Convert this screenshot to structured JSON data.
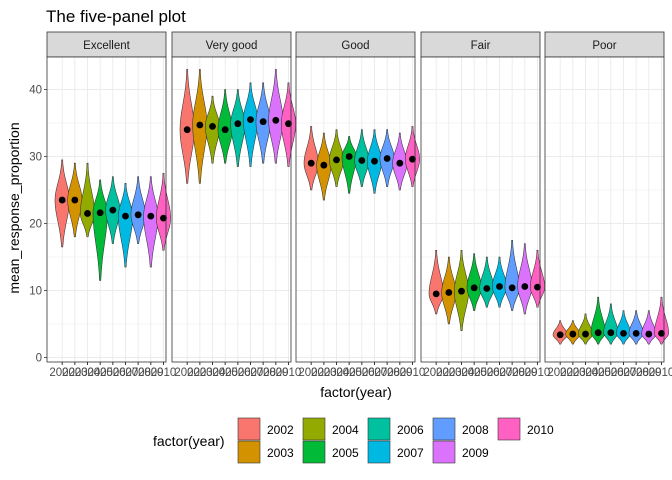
{
  "chart_data": {
    "type": "violin",
    "title": "The five-panel plot",
    "xlabel": "factor(year)",
    "ylabel": "mean_response_proportion",
    "ylim": [
      0,
      45
    ],
    "yticks": [
      0,
      10,
      20,
      30,
      40
    ],
    "grid": true,
    "facets": [
      "Excellent",
      "Very good",
      "Good",
      "Fair",
      "Poor"
    ],
    "categories": [
      "2002",
      "2003",
      "2004",
      "2005",
      "2006",
      "2007",
      "2008",
      "2009",
      "2010"
    ],
    "legend": {
      "title": "factor(year)",
      "position": "bottom",
      "entries": [
        "2002",
        "2003",
        "2004",
        "2005",
        "2006",
        "2007",
        "2008",
        "2009",
        "2010"
      ]
    },
    "year_colors": [
      "#F8766D",
      "#D39200",
      "#93AA00",
      "#00BA38",
      "#00C19F",
      "#00B9E3",
      "#619CFF",
      "#DB72FB",
      "#FF61C3"
    ],
    "panels": [
      {
        "facet": "Excellent",
        "means": [
          23.5,
          23.5,
          21.5,
          21.6,
          22.0,
          21.1,
          21.3,
          21.1,
          20.8
        ],
        "mins": [
          16.5,
          18.0,
          18.0,
          11.5,
          17.0,
          13.5,
          17.0,
          13.5,
          16.0
        ],
        "maxs": [
          29.5,
          29.0,
          29.0,
          26.5,
          27.0,
          26.0,
          27.0,
          27.0,
          27.5
        ]
      },
      {
        "facet": "Very good",
        "means": [
          34.0,
          34.7,
          34.5,
          34.0,
          34.9,
          35.5,
          35.2,
          35.4,
          34.9
        ],
        "mins": [
          26.0,
          26.0,
          29.0,
          29.0,
          28.5,
          28.5,
          29.0,
          29.0,
          28.5
        ],
        "maxs": [
          43.0,
          43.0,
          39.0,
          40.0,
          40.0,
          41.0,
          41.0,
          43.0,
          41.0
        ]
      },
      {
        "facet": "Good",
        "means": [
          29.0,
          28.7,
          29.5,
          30.0,
          29.4,
          29.3,
          29.7,
          29.0,
          29.6
        ],
        "mins": [
          25.0,
          23.5,
          25.5,
          24.5,
          25.5,
          24.5,
          25.5,
          25.0,
          25.5
        ],
        "maxs": [
          34.5,
          33.5,
          34.0,
          33.0,
          34.0,
          34.0,
          34.0,
          33.5,
          34.5
        ]
      },
      {
        "facet": "Fair",
        "means": [
          9.5,
          9.7,
          9.9,
          10.4,
          10.3,
          10.6,
          10.4,
          10.6,
          10.5
        ],
        "mins": [
          6.5,
          5.0,
          4.0,
          7.0,
          7.5,
          7.5,
          7.0,
          6.5,
          7.5
        ],
        "maxs": [
          16.0,
          15.0,
          16.0,
          15.5,
          15.0,
          15.0,
          17.5,
          17.0,
          16.0
        ]
      },
      {
        "facet": "Poor",
        "means": [
          3.4,
          3.5,
          3.5,
          3.7,
          3.7,
          3.6,
          3.6,
          3.5,
          3.6
        ],
        "mins": [
          2.0,
          2.0,
          2.0,
          2.0,
          2.0,
          2.0,
          2.0,
          2.0,
          2.0
        ],
        "maxs": [
          5.5,
          5.5,
          6.5,
          9.0,
          8.0,
          7.0,
          7.0,
          7.0,
          9.0
        ]
      }
    ]
  }
}
